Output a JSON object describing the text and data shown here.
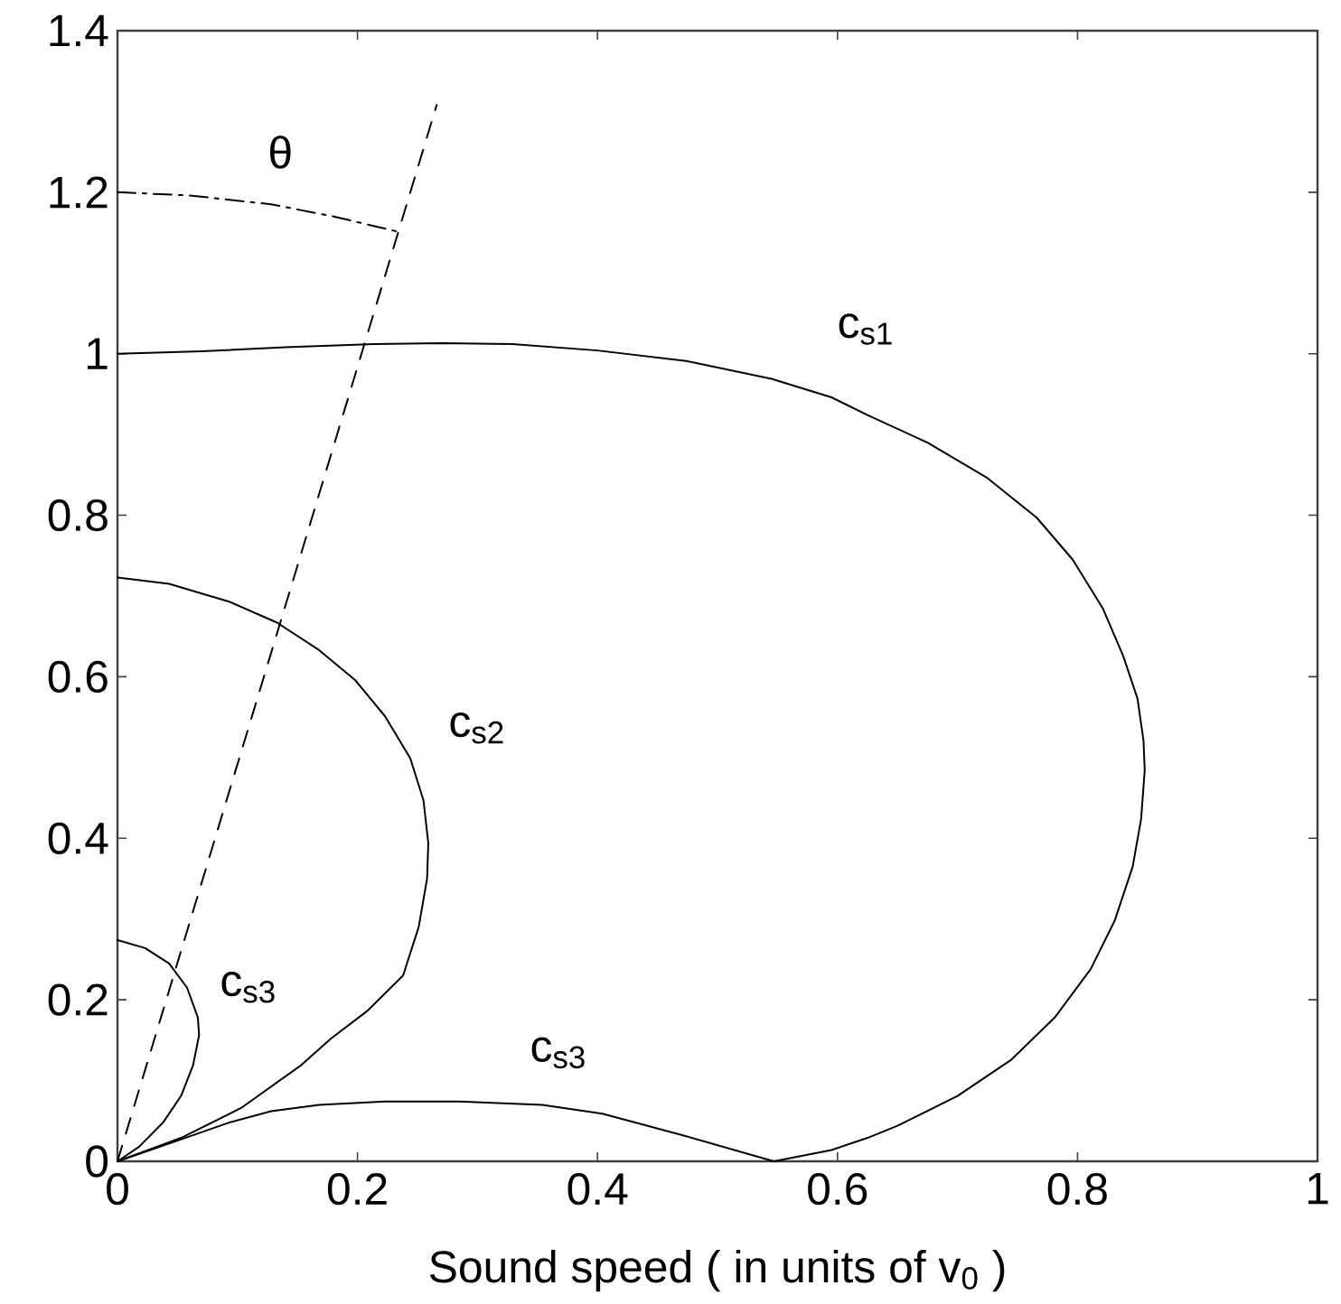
{
  "chart_data": {
    "type": "line",
    "xlabel": "Sound speed ( in units of v$_{0}$ )",
    "xlim": [
      0,
      1
    ],
    "ylim": [
      0,
      1.4
    ],
    "xticks": [
      0,
      0.2,
      0.4,
      0.6,
      0.8,
      1
    ],
    "yticks": [
      0,
      0.2,
      0.4,
      0.6,
      0.8,
      1,
      1.2,
      1.4
    ],
    "series": [
      {
        "name": "c$_{s1}$",
        "color": "#000000",
        "x": [
          0,
          0.07,
          0.14,
          0.214,
          0.27,
          0.329,
          0.4,
          0.474,
          0.545,
          0.595,
          0.625,
          0.675,
          0.725,
          0.766,
          0.796,
          0.821,
          0.838,
          0.85,
          0.855,
          0.856,
          0.853,
          0.846,
          0.831,
          0.811,
          0.781,
          0.745,
          0.7,
          0.65,
          0.625,
          0.595,
          0.547
        ],
        "values": [
          1.0,
          1.003,
          1.008,
          1.012,
          1.013,
          1.012,
          1.004,
          0.991,
          0.969,
          0.946,
          0.924,
          0.89,
          0.846,
          0.797,
          0.745,
          0.685,
          0.626,
          0.573,
          0.521,
          0.484,
          0.424,
          0.365,
          0.298,
          0.238,
          0.178,
          0.126,
          0.081,
          0.044,
          0.029,
          0.014,
          0
        ]
      },
      {
        "name": "c$_{s2}$",
        "color": "#000000",
        "x": [
          0,
          0.043,
          0.093,
          0.133,
          0.168,
          0.198,
          0.223,
          0.244,
          0.255,
          0.259,
          0.258,
          0.251,
          0.238,
          0.208,
          0.178,
          0.153,
          0.103,
          0.053,
          0
        ],
        "values": [
          0.723,
          0.715,
          0.693,
          0.667,
          0.633,
          0.596,
          0.551,
          0.499,
          0.447,
          0.394,
          0.35,
          0.29,
          0.23,
          0.186,
          0.152,
          0.119,
          0.066,
          0.029,
          0
        ]
      },
      {
        "name": "c$_{s3}$",
        "color": "#000000",
        "x": [
          0,
          0.023,
          0.043,
          0.058,
          0.067,
          0.068,
          0.063,
          0.053,
          0.038,
          0.018,
          0
        ],
        "values": [
          0.274,
          0.264,
          0.245,
          0.215,
          0.178,
          0.156,
          0.119,
          0.081,
          0.048,
          0.018,
          0
        ]
      },
      {
        "name": "c$_{s3}$",
        "color": "#000000",
        "x": [
          0,
          0.043,
          0.093,
          0.128,
          0.168,
          0.223,
          0.284,
          0.354,
          0.404,
          0.444,
          0.474,
          0.547
        ],
        "values": [
          0,
          0.022,
          0.048,
          0.062,
          0.07,
          0.074,
          0.074,
          0.07,
          0.059,
          0.043,
          0.031,
          0
        ]
      },
      {
        "color": "#000000",
        "line_style": "dashed",
        "x": [
          0,
          0.266
        ],
        "values": [
          0,
          1.308
        ]
      },
      {
        "name": "θ",
        "color": "#000000",
        "line_style": "dashdot",
        "x": [
          0,
          0.06,
          0.128,
          0.18,
          0.234
        ],
        "values": [
          1.2,
          1.196,
          1.185,
          1.17,
          1.151
        ]
      }
    ]
  }
}
